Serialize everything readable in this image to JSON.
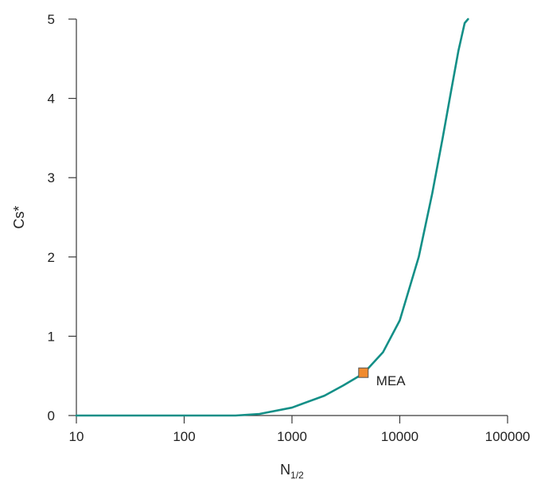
{
  "chart_data": {
    "type": "line",
    "xlabel": {
      "main": "N",
      "subscript": "1/2"
    },
    "ylabel": "Cs*",
    "xscale": "log",
    "xlim": [
      10,
      100000
    ],
    "ylim": [
      0,
      5
    ],
    "xticks": [
      10,
      100,
      1000,
      10000,
      100000
    ],
    "xtick_labels": [
      "10",
      "100",
      "1000",
      "10000",
      "100000"
    ],
    "yticks": [
      0,
      1,
      2,
      3,
      4,
      5
    ],
    "ytick_labels": [
      "0",
      "1",
      "2",
      "3",
      "4",
      "5"
    ],
    "grid": false,
    "series": [
      {
        "color": "#138f87",
        "x": [
          10,
          100,
          300,
          500,
          1000,
          2000,
          3000,
          4600,
          7000,
          10000,
          15000,
          20000,
          25000,
          30000,
          35000,
          40000,
          43000
        ],
        "y": [
          0,
          0,
          0,
          0.02,
          0.1,
          0.25,
          0.38,
          0.53,
          0.8,
          1.2,
          2.0,
          2.8,
          3.5,
          4.1,
          4.6,
          4.95,
          5.0
        ]
      }
    ],
    "points": [
      {
        "label": "MEA",
        "x": 4600,
        "y": 0.54,
        "color": "#f08a2e"
      }
    ]
  }
}
